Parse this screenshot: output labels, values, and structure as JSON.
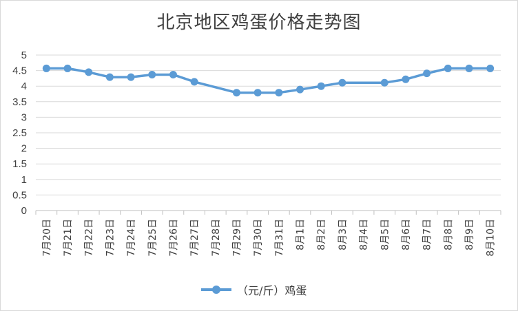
{
  "chart_data": {
    "type": "line",
    "title": "北京地区鸡蛋价格走势图",
    "xlabel": "",
    "ylabel": "",
    "ylim": [
      0,
      5
    ],
    "y_ticks": [
      "0",
      "0.5",
      "1",
      "1.5",
      "2",
      "2.5",
      "3",
      "3.5",
      "4",
      "4.5",
      "5"
    ],
    "grid": true,
    "legend_position": "bottom",
    "categories": [
      "7月20日",
      "7月21日",
      "7月22日",
      "7月23日",
      "7月24日",
      "7月25日",
      "7月26日",
      "7月27日",
      "7月28日",
      "7月29日",
      "7月30日",
      "7月31日",
      "8月1日",
      "8月2日",
      "8月3日",
      "8月4日",
      "8月5日",
      "8月6日",
      "8月7日",
      "8月8日",
      "8月9日",
      "8月10日"
    ],
    "series": [
      {
        "name": "（元/斤）鸡蛋",
        "color": "#5b9bd5",
        "values": [
          4.57,
          4.57,
          4.45,
          4.29,
          4.29,
          4.37,
          4.37,
          4.14,
          null,
          3.79,
          3.79,
          3.79,
          3.89,
          4.0,
          4.11,
          null,
          4.11,
          4.22,
          4.41,
          4.57,
          4.57,
          4.57
        ]
      }
    ]
  }
}
